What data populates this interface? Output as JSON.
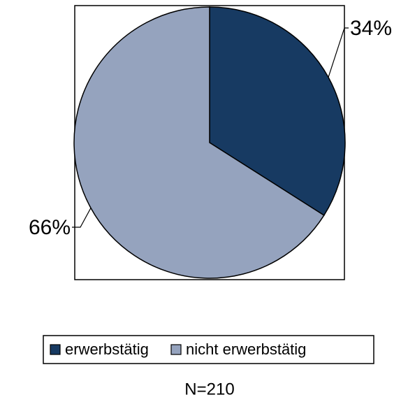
{
  "chart_data": {
    "type": "pie",
    "categories": [
      "erwerbstätig",
      "nicht erwerbstätig"
    ],
    "values": [
      34,
      66
    ],
    "value_labels": [
      "34%",
      "66%"
    ],
    "colors": [
      "#173a62",
      "#95a3be"
    ],
    "caption": "N=210",
    "legend": "bottom"
  }
}
